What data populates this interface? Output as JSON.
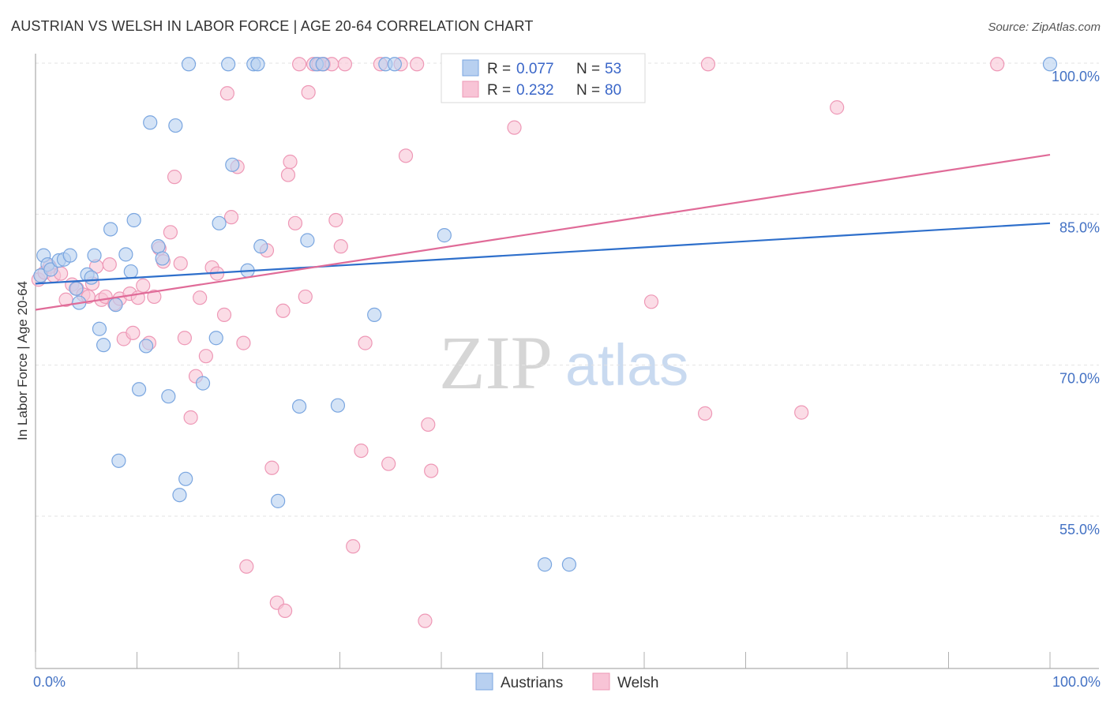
{
  "title": "AUSTRIAN VS WELSH IN LABOR FORCE | AGE 20-64 CORRELATION CHART",
  "source": "Source: ZipAtlas.com",
  "watermark": {
    "zip": "ZIP",
    "atlas": "atlas"
  },
  "colors": {
    "austrians_fill": "#b8d0f0",
    "austrians_stroke": "#7aa6e0",
    "austrians_line": "#2e6fcb",
    "welsh_fill": "#f8c4d6",
    "welsh_stroke": "#ee98b6",
    "welsh_line": "#e06b98",
    "grid": "#e3e3e3",
    "tick_label": "#4472c4"
  },
  "legend": {
    "austrians": {
      "r_label": "R =",
      "r_value": "0.077",
      "n_label": "N =",
      "n_value": "53"
    },
    "welsh": {
      "r_label": "R =",
      "r_value": "0.232",
      "n_label": "N =",
      "n_value": "80"
    }
  },
  "chart_data": {
    "type": "scatter",
    "title": "AUSTRIAN VS WELSH IN LABOR FORCE | AGE 20-64 CORRELATION CHART",
    "xlabel": "",
    "ylabel": "In Labor Force | Age 20-64",
    "xlim": [
      0,
      100
    ],
    "ylim": [
      40,
      101.5
    ],
    "x_tick_labels": [
      "0.0%",
      "100.0%"
    ],
    "y_ticks": [
      55,
      70,
      85,
      100
    ],
    "y_tick_labels": [
      "55.0%",
      "70.0%",
      "85.0%",
      "100.0%"
    ],
    "grid": true,
    "legend_position": "top-center",
    "series": [
      {
        "name": "Austrians",
        "r": 0.077,
        "n": 53,
        "trend": {
          "x": [
            0,
            100
          ],
          "y": [
            78.1,
            84.1
          ]
        },
        "points": [
          [
            0.5,
            78.9
          ],
          [
            0.8,
            80.9
          ],
          [
            1.2,
            80.0
          ],
          [
            1.5,
            79.5
          ],
          [
            2.3,
            80.4
          ],
          [
            2.8,
            80.5
          ],
          [
            3.4,
            80.9
          ],
          [
            4.0,
            77.6
          ],
          [
            4.3,
            76.2
          ],
          [
            5.1,
            79.0
          ],
          [
            5.5,
            78.7
          ],
          [
            5.8,
            80.9
          ],
          [
            6.3,
            73.6
          ],
          [
            6.7,
            72.0
          ],
          [
            7.4,
            83.5
          ],
          [
            7.9,
            76.0
          ],
          [
            8.2,
            60.5
          ],
          [
            8.9,
            81.0
          ],
          [
            9.4,
            79.3
          ],
          [
            9.7,
            84.4
          ],
          [
            10.2,
            67.6
          ],
          [
            10.9,
            71.9
          ],
          [
            11.3,
            94.1
          ],
          [
            12.1,
            81.8
          ],
          [
            12.5,
            80.6
          ],
          [
            13.1,
            66.9
          ],
          [
            13.8,
            93.8
          ],
          [
            14.2,
            57.1
          ],
          [
            14.8,
            58.7
          ],
          [
            15.1,
            99.9
          ],
          [
            16.5,
            68.2
          ],
          [
            17.8,
            72.7
          ],
          [
            18.1,
            84.1
          ],
          [
            19.0,
            99.9
          ],
          [
            19.4,
            89.9
          ],
          [
            20.9,
            79.4
          ],
          [
            21.5,
            99.9
          ],
          [
            21.9,
            99.9
          ],
          [
            22.2,
            81.8
          ],
          [
            23.9,
            56.5
          ],
          [
            26.0,
            65.9
          ],
          [
            26.8,
            82.4
          ],
          [
            27.7,
            99.9
          ],
          [
            28.3,
            99.9
          ],
          [
            29.8,
            66.0
          ],
          [
            33.4,
            75.0
          ],
          [
            34.5,
            99.9
          ],
          [
            35.4,
            99.9
          ],
          [
            40.3,
            82.9
          ],
          [
            47.7,
            99.9
          ],
          [
            50.2,
            50.2
          ],
          [
            52.6,
            50.2
          ],
          [
            100.0,
            99.9
          ]
        ]
      },
      {
        "name": "Welsh",
        "r": 0.232,
        "n": 80,
        "trend": {
          "x": [
            0,
            100
          ],
          "y": [
            75.5,
            90.9
          ]
        },
        "points": [
          [
            0.3,
            78.5
          ],
          [
            0.9,
            79.2
          ],
          [
            1.4,
            79.8
          ],
          [
            1.8,
            78.9
          ],
          [
            2.5,
            79.1
          ],
          [
            3.0,
            76.5
          ],
          [
            3.6,
            78.0
          ],
          [
            4.1,
            77.6
          ],
          [
            4.7,
            77.0
          ],
          [
            5.2,
            76.8
          ],
          [
            5.6,
            78.1
          ],
          [
            6.0,
            79.8
          ],
          [
            6.5,
            76.5
          ],
          [
            6.9,
            76.8
          ],
          [
            7.3,
            80.0
          ],
          [
            7.8,
            76.1
          ],
          [
            8.3,
            76.6
          ],
          [
            8.7,
            72.6
          ],
          [
            9.3,
            77.1
          ],
          [
            9.6,
            73.2
          ],
          [
            10.1,
            76.7
          ],
          [
            10.6,
            77.9
          ],
          [
            11.2,
            72.2
          ],
          [
            11.7,
            76.8
          ],
          [
            12.2,
            81.6
          ],
          [
            12.6,
            80.3
          ],
          [
            13.3,
            83.2
          ],
          [
            13.7,
            88.7
          ],
          [
            14.3,
            80.1
          ],
          [
            14.7,
            72.7
          ],
          [
            15.3,
            64.8
          ],
          [
            15.8,
            68.9
          ],
          [
            16.2,
            76.7
          ],
          [
            16.8,
            70.9
          ],
          [
            17.4,
            79.7
          ],
          [
            17.9,
            79.1
          ],
          [
            18.6,
            75.0
          ],
          [
            18.9,
            97.0
          ],
          [
            19.3,
            84.7
          ],
          [
            19.9,
            89.7
          ],
          [
            20.5,
            72.2
          ],
          [
            20.8,
            50.0
          ],
          [
            22.8,
            81.4
          ],
          [
            23.3,
            59.8
          ],
          [
            23.8,
            46.4
          ],
          [
            24.4,
            75.4
          ],
          [
            24.6,
            45.6
          ],
          [
            24.9,
            88.9
          ],
          [
            25.1,
            90.2
          ],
          [
            25.6,
            84.1
          ],
          [
            26.0,
            99.9
          ],
          [
            26.6,
            76.8
          ],
          [
            26.9,
            97.1
          ],
          [
            27.4,
            99.9
          ],
          [
            27.9,
            99.9
          ],
          [
            28.4,
            99.9
          ],
          [
            29.2,
            99.9
          ],
          [
            29.6,
            84.4
          ],
          [
            30.1,
            81.8
          ],
          [
            30.5,
            99.9
          ],
          [
            31.3,
            52.0
          ],
          [
            32.1,
            61.5
          ],
          [
            32.5,
            72.2
          ],
          [
            34.0,
            99.9
          ],
          [
            34.8,
            60.2
          ],
          [
            36.0,
            99.9
          ],
          [
            36.5,
            90.8
          ],
          [
            37.6,
            99.9
          ],
          [
            38.4,
            44.6
          ],
          [
            38.7,
            64.1
          ],
          [
            39.0,
            59.5
          ],
          [
            41.3,
            99.9
          ],
          [
            43.4,
            99.9
          ],
          [
            47.2,
            93.6
          ],
          [
            60.7,
            76.3
          ],
          [
            66.0,
            65.2
          ],
          [
            66.3,
            99.9
          ],
          [
            75.5,
            65.3
          ],
          [
            79.0,
            95.6
          ],
          [
            94.8,
            99.9
          ]
        ]
      }
    ]
  }
}
